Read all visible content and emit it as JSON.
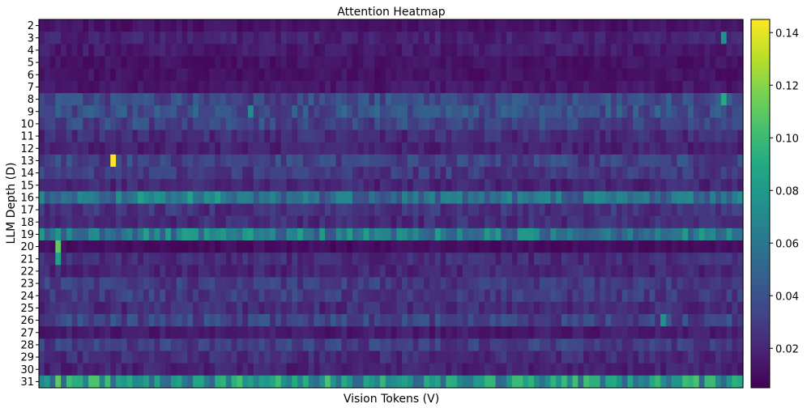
{
  "chart_data": {
    "type": "heatmap",
    "title": "Attention Heatmap",
    "xlabel": "Vision Tokens (V)",
    "ylabel": "LLM Depth (D)",
    "rows": [
      "2",
      "3",
      "4",
      "5",
      "6",
      "7",
      "8",
      "9",
      "10",
      "11",
      "12",
      "13",
      "14",
      "15",
      "16",
      "17",
      "18",
      "19",
      "20",
      "21",
      "22",
      "23",
      "24",
      "25",
      "26",
      "27",
      "28",
      "29",
      "30",
      "31"
    ],
    "n_columns": 128,
    "colormap": "viridis",
    "colorbar": {
      "ticks": [
        0.02,
        0.04,
        0.06,
        0.08,
        0.1,
        0.12,
        0.14
      ],
      "tick_labels": [
        "0.02",
        "0.04",
        "0.06",
        "0.08",
        "0.10",
        "0.12",
        "0.14"
      ],
      "range": [
        0.005,
        0.145
      ]
    },
    "row_base_values": [
      0.012,
      0.018,
      0.015,
      0.012,
      0.012,
      0.014,
      0.035,
      0.038,
      0.033,
      0.022,
      0.018,
      0.032,
      0.028,
      0.02,
      0.055,
      0.025,
      0.022,
      0.06,
      0.01,
      0.022,
      0.02,
      0.028,
      0.028,
      0.022,
      0.032,
      0.015,
      0.03,
      0.022,
      0.018,
      0.075
    ],
    "highlights": [
      {
        "row": "13",
        "column": 13,
        "value": 0.145
      },
      {
        "row": "20",
        "column": 3,
        "value": 0.11
      },
      {
        "row": "21",
        "column": 3,
        "value": 0.085
      },
      {
        "row": "31",
        "column": 3,
        "value": 0.11
      },
      {
        "row": "31",
        "column": 9,
        "value": 0.105
      },
      {
        "row": "31",
        "column": 10,
        "value": 0.105
      },
      {
        "row": "16",
        "column": 18,
        "value": 0.085
      },
      {
        "row": "16",
        "column": 27,
        "value": 0.085
      },
      {
        "row": "16",
        "column": 32,
        "value": 0.085
      },
      {
        "row": "9",
        "column": 38,
        "value": 0.07
      },
      {
        "row": "8",
        "column": 124,
        "value": 0.09
      },
      {
        "row": "3",
        "column": 124,
        "value": 0.075
      },
      {
        "row": "26",
        "column": 113,
        "value": 0.075
      }
    ]
  }
}
